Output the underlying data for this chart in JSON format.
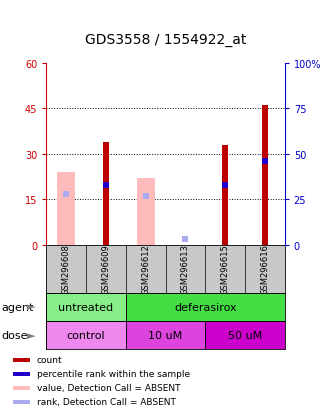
{
  "title": "GDS3558 / 1554922_at",
  "samples": [
    "GSM296608",
    "GSM296609",
    "GSM296612",
    "GSM296613",
    "GSM296615",
    "GSM296616"
  ],
  "red_bars": [
    0,
    34,
    0,
    0,
    33,
    46
  ],
  "pink_bars": [
    24,
    0,
    22,
    0,
    0,
    0
  ],
  "blue_dots_right": [
    0,
    33,
    0,
    0,
    33,
    46
  ],
  "lightblue_dots_right": [
    28,
    0,
    27,
    3,
    0,
    0
  ],
  "left_ylim": [
    0,
    60
  ],
  "right_ylim": [
    0,
    100
  ],
  "left_yticks": [
    0,
    15,
    30,
    45,
    60
  ],
  "right_yticks": [
    0,
    25,
    50,
    75,
    100
  ],
  "right_yticklabels": [
    "0",
    "25",
    "50",
    "75",
    "100%"
  ],
  "left_yticklabels": [
    "0",
    "15",
    "30",
    "45",
    "60"
  ],
  "grid_lines": [
    15,
    30,
    45
  ],
  "red_color": "#bb0000",
  "pink_color": "#ffbbbb",
  "blue_color": "#2200cc",
  "lightblue_color": "#aaaaee",
  "left_axis_color": "#cc0000",
  "right_axis_color": "#0000cc",
  "sample_bg_color": "#c8c8c8",
  "agent_bg_untreated": "#88ee88",
  "agent_bg_deferasirox": "#44dd44",
  "dose_bg_control": "#ee88ee",
  "dose_bg_10uM": "#dd44dd",
  "dose_bg_50uM": "#cc00cc",
  "agent_row_label": "agent",
  "dose_row_label": "dose",
  "legend_labels": [
    "count",
    "percentile rank within the sample",
    "value, Detection Call = ABSENT",
    "rank, Detection Call = ABSENT"
  ],
  "legend_colors": [
    "#bb0000",
    "#2200cc",
    "#ffbbbb",
    "#aaaaee"
  ],
  "pink_bar_width": 0.45,
  "red_bar_width": 0.15,
  "dot_size": 4,
  "title_fontsize": 10,
  "tick_fontsize": 7,
  "sample_fontsize": 6,
  "label_fontsize": 8,
  "legend_fontsize": 6.5
}
